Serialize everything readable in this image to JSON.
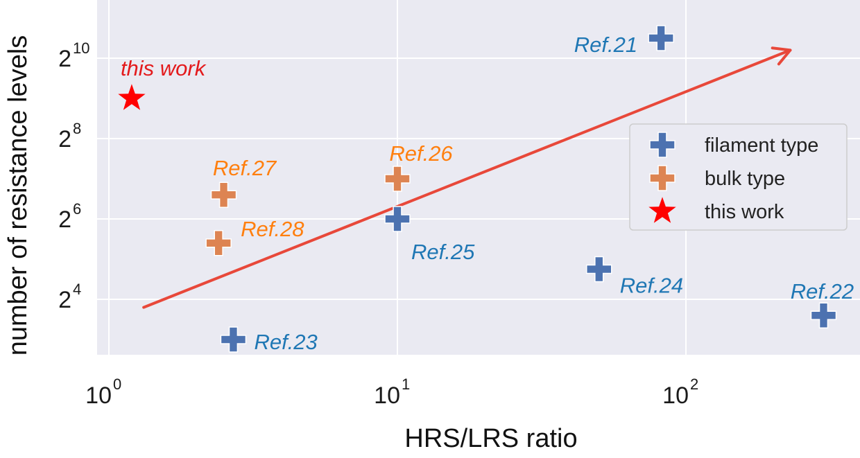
{
  "chart_data": {
    "type": "scatter",
    "title": "",
    "xlabel": "HRS/LRS ratio",
    "ylabel": "number of resistance levels",
    "x_scale": "log10",
    "y_scale": "log2",
    "xlim": [
      1.0,
      500
    ],
    "ylim": [
      2.3,
      11.6
    ],
    "x_ticks": [
      {
        "value": 1,
        "base": "10",
        "exp": "0"
      },
      {
        "value": 10,
        "base": "10",
        "exp": "1"
      },
      {
        "value": 100,
        "base": "10",
        "exp": "2"
      }
    ],
    "y_ticks": [
      {
        "value": 4,
        "base": "2",
        "exp": "4"
      },
      {
        "value": 6,
        "base": "2",
        "exp": "6"
      },
      {
        "value": 8,
        "base": "2",
        "exp": "8"
      },
      {
        "value": 10,
        "base": "2",
        "exp": "10"
      }
    ],
    "grid": true,
    "background_color": "#eaeaf2",
    "series": [
      {
        "name": "filament type",
        "marker": "plus",
        "color": "#4c72b0",
        "label_color": "#1f77b4",
        "points": [
          {
            "x": 82,
            "y": 10.5,
            "label": "Ref.21"
          },
          {
            "x": 300,
            "y": 3.6,
            "label": "Ref.22"
          },
          {
            "x": 2.7,
            "y": 3.0,
            "label": "Ref.23"
          },
          {
            "x": 50,
            "y": 4.75,
            "label": "Ref.24"
          },
          {
            "x": 10,
            "y": 6.0,
            "label": "Ref.25"
          }
        ]
      },
      {
        "name": "bulk type",
        "marker": "plus",
        "color": "#dd8452",
        "label_color": "#ff7f0e",
        "points": [
          {
            "x": 10,
            "y": 7.0,
            "label": "Ref.26"
          },
          {
            "x": 2.5,
            "y": 6.6,
            "label": "Ref.27"
          },
          {
            "x": 2.4,
            "y": 5.4,
            "label": "Ref.28"
          }
        ]
      },
      {
        "name": "this work",
        "marker": "star",
        "color": "#ff0000",
        "label_color": "#e31a1c",
        "points": [
          {
            "x": 1.2,
            "y": 9.0,
            "label": "this work"
          }
        ]
      }
    ],
    "trend_arrow": {
      "color": "#e8483a",
      "from": {
        "x": 1.32,
        "y": 3.8
      },
      "to": {
        "x": 230,
        "y": 10.2
      }
    },
    "legend": {
      "position": "right",
      "entries": [
        "filament type",
        "bulk type",
        "this work"
      ]
    }
  }
}
